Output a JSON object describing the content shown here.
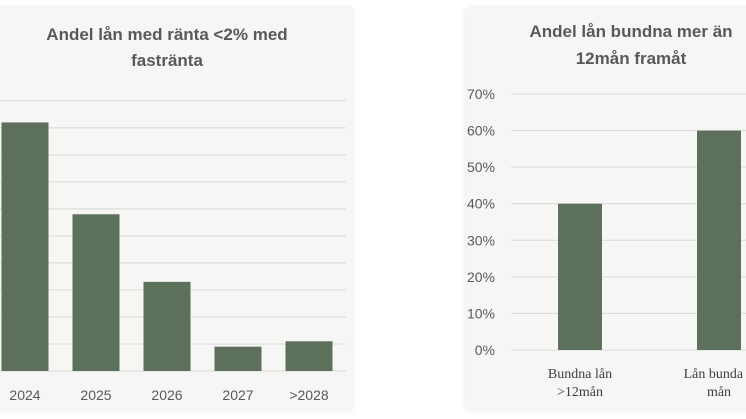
{
  "chart_data": [
    {
      "type": "bar",
      "title_lines": [
        "Andel lån med ränta <2% med",
        "fastränta"
      ],
      "categories": [
        "2024",
        "2025",
        "2026",
        "2027",
        ">2028"
      ],
      "values": [
        46,
        29,
        16.5,
        4.5,
        5.5
      ],
      "ylim": [
        0,
        52
      ],
      "grid": true,
      "colors": {
        "bar": "#5d705b",
        "grid": "#d9d9d9",
        "text": "#595959"
      }
    },
    {
      "type": "bar",
      "title_lines": [
        "Andel lån bundna mer än",
        "12mån framåt"
      ],
      "categories": [
        "Bundna lån\n>12mån",
        "Lån bunda <\nmån"
      ],
      "values": [
        40,
        60
      ],
      "ylim": [
        0,
        70
      ],
      "yticks": [
        "0%",
        "10%",
        "20%",
        "30%",
        "40%",
        "50%",
        "60%",
        "70%"
      ],
      "grid": true,
      "colors": {
        "bar": "#5d705b",
        "grid": "#d9d9d9",
        "text": "#595959"
      }
    }
  ]
}
